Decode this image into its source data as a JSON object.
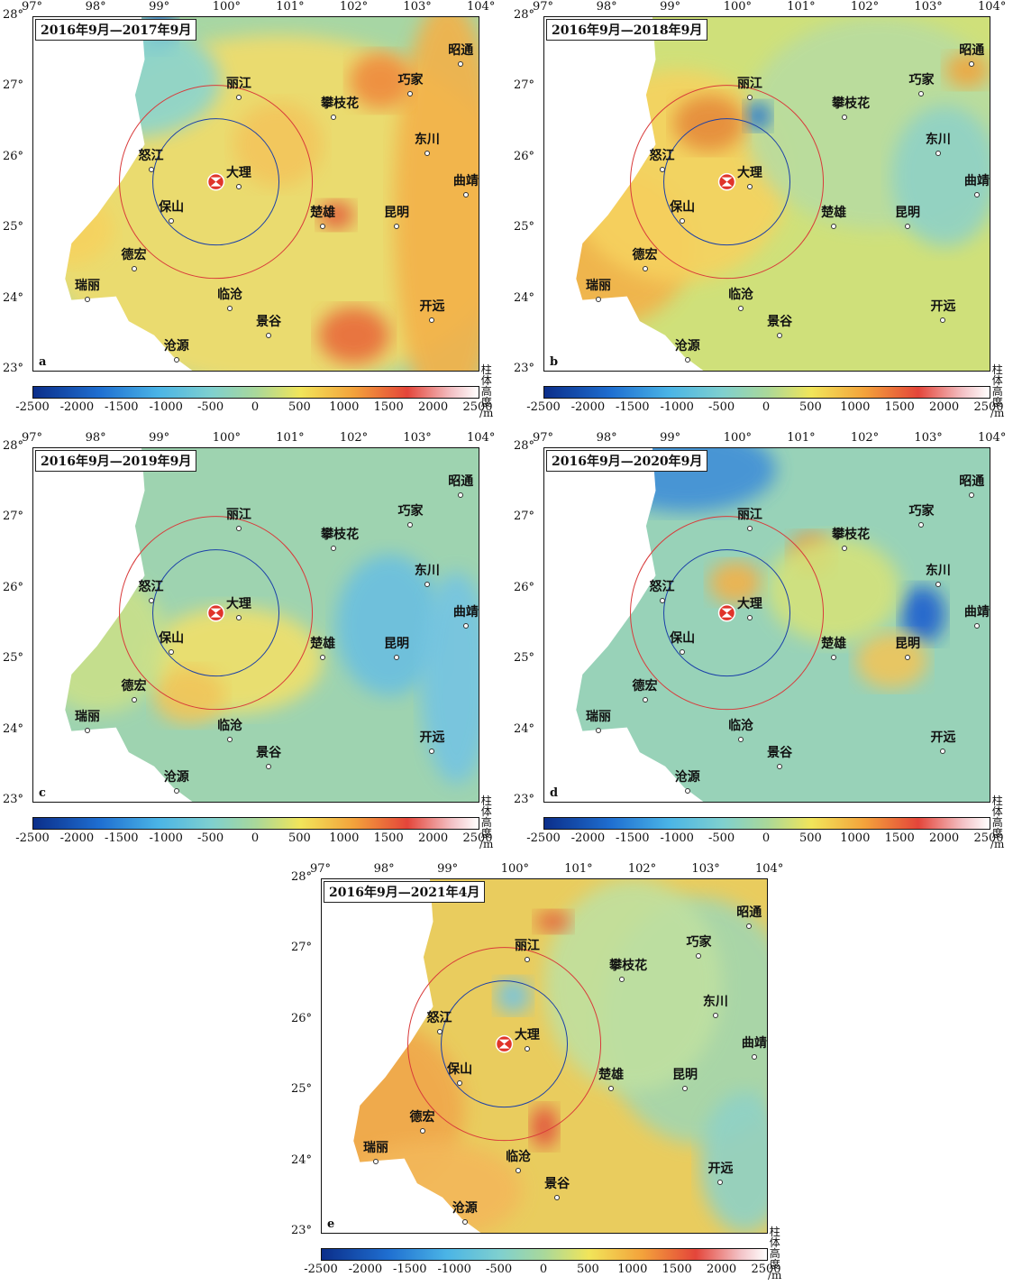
{
  "panels": [
    {
      "title": "2016年9月—2017年9月",
      "letter": "a"
    },
    {
      "title": "2016年9月—2018年9月",
      "letter": "b"
    },
    {
      "title": "2016年9月—2019年9月",
      "letter": "c"
    },
    {
      "title": "2016年9月—2020年9月",
      "letter": "d"
    },
    {
      "title": "2016年9月—2021年4月",
      "letter": "e"
    }
  ],
  "lon_ticks": [
    "97°",
    "98°",
    "99°",
    "100°",
    "101°",
    "102°",
    "103°",
    "104°"
  ],
  "lat_ticks": [
    "28°",
    "27°",
    "26°",
    "25°",
    "24°",
    "23°"
  ],
  "cities": [
    {
      "name": "丽江",
      "lon": 100.23,
      "lat": 26.87
    },
    {
      "name": "攀枝花",
      "lon": 101.72,
      "lat": 26.58
    },
    {
      "name": "巧家",
      "lon": 102.93,
      "lat": 26.92
    },
    {
      "name": "昭通",
      "lon": 103.72,
      "lat": 27.34
    },
    {
      "name": "东川",
      "lon": 103.19,
      "lat": 26.08
    },
    {
      "name": "曲靖",
      "lon": 103.8,
      "lat": 25.49
    },
    {
      "name": "怒江",
      "lon": 98.85,
      "lat": 25.85
    },
    {
      "name": "大理",
      "lon": 100.23,
      "lat": 25.6
    },
    {
      "name": "保山",
      "lon": 99.17,
      "lat": 25.12
    },
    {
      "name": "楚雄",
      "lon": 101.55,
      "lat": 25.04
    },
    {
      "name": "昆明",
      "lon": 102.71,
      "lat": 25.04
    },
    {
      "name": "德宏",
      "lon": 98.58,
      "lat": 24.44
    },
    {
      "name": "瑞丽",
      "lon": 97.85,
      "lat": 24.01
    },
    {
      "name": "临沧",
      "lon": 100.09,
      "lat": 23.88
    },
    {
      "name": "开远",
      "lon": 103.27,
      "lat": 23.71
    },
    {
      "name": "沧源",
      "lon": 99.25,
      "lat": 23.15
    },
    {
      "name": "景谷",
      "lon": 100.7,
      "lat": 23.5
    }
  ],
  "epicenter": {
    "lon": 99.87,
    "lat": 25.67
  },
  "colorbar": {
    "ticks": [
      "-2500",
      "-2000",
      "-1500",
      "-1000",
      "-500",
      "0",
      "500",
      "1000",
      "1500",
      "2000",
      "2500"
    ],
    "unit_line1": "柱体",
    "unit_line2": "高度",
    "unit_line3": "/m"
  },
  "colors": {
    "anomaly_low": "#1f6fd1",
    "anomaly_high": "#e4453a",
    "inner_circle": "#1a3fa8",
    "outer_circle": "#d83a3a",
    "epicenter": "#e0342a"
  }
}
